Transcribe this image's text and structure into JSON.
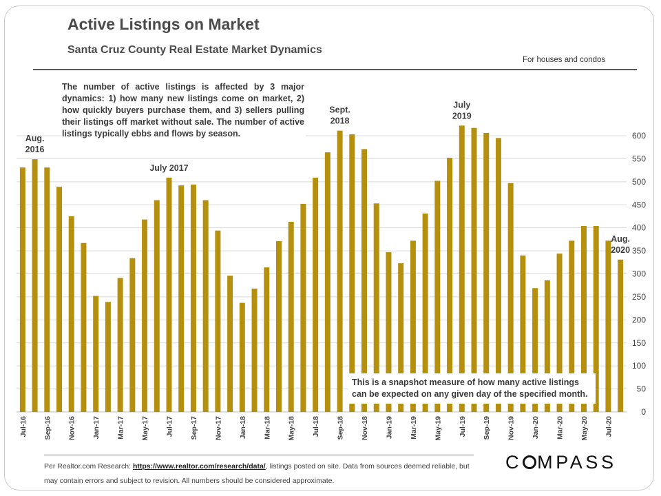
{
  "header": {
    "title": "Active Listings on Market",
    "subtitle": "Santa Cruz County Real Estate Market Dynamics",
    "scope_note": "For houses and condos"
  },
  "annotations": {
    "dynamics_note": "The number of active listings is affected by 3 major dynamics: 1) how many new listings come on market, 2) how quickly buyers purchase them, and 3) sellers pulling their listings off market without sale. The number of active listings typically ebbs and flows by season.",
    "snapshot_note": "This is a snapshot measure of how many active listings can be expected on any given day of the specified month."
  },
  "footer": {
    "prefix": "Per Realtor.com Research: ",
    "link_text": "https://www.realtor.com/research/data/",
    "suffix": ", listings posted on site. Data from sources deemed reliable, but may contain errors and subject to revision. All numbers should be considered approximate."
  },
  "brand": {
    "logo_text": "COMPASS",
    "bar_color": "#b5900f",
    "grid_color": "#d9d9d9"
  },
  "chart_data": {
    "type": "bar",
    "title": "Active Listings on Market",
    "xlabel": "",
    "ylabel": "",
    "ylim": [
      0,
      650
    ],
    "yticks": [
      0,
      50,
      100,
      150,
      200,
      250,
      300,
      350,
      400,
      450,
      500,
      550,
      600
    ],
    "y_axis_side": "right",
    "grid": true,
    "categories": [
      "Jul-16",
      "Aug-16",
      "Sep-16",
      "Oct-16",
      "Nov-16",
      "Dec-16",
      "Jan-17",
      "Feb-17",
      "Mar-17",
      "Apr-17",
      "May-17",
      "Jun-17",
      "Jul-17",
      "Aug-17",
      "Sep-17",
      "Oct-17",
      "Nov-17",
      "Dec-17",
      "Jan-18",
      "Feb-18",
      "Mar-18",
      "Apr-18",
      "May-18",
      "Jun-18",
      "Jul-18",
      "Aug-18",
      "Sep-18",
      "Oct-18",
      "Nov-18",
      "Dec-18",
      "Jan-19",
      "Feb-19",
      "Mar-19",
      "Apr-19",
      "May-19",
      "Jun-19",
      "Jul-19",
      "Aug-19",
      "Sep-19",
      "Oct-19",
      "Nov-19",
      "Dec-19",
      "Jan-20",
      "Feb-20",
      "Mar-20",
      "Apr-20",
      "May-20",
      "Jun-20",
      "Jul-20",
      "Aug-20"
    ],
    "tick_labels": [
      "Jul-16",
      "Sep-16",
      "Nov-16",
      "Jan-17",
      "Mar-17",
      "May-17",
      "Jul-17",
      "Sep-17",
      "Nov-17",
      "Jan-18",
      "Mar-18",
      "May-18",
      "Jul-18",
      "Sep-18",
      "Nov-18",
      "Jan-19",
      "Mar-19",
      "May-19",
      "Jul-19",
      "Sep-19",
      "Nov-19",
      "Jan-20",
      "Mar-20",
      "May-20",
      "Jul-20"
    ],
    "values": [
      531,
      549,
      531,
      489,
      425,
      367,
      252,
      239,
      291,
      334,
      418,
      460,
      509,
      492,
      494,
      460,
      394,
      296,
      237,
      268,
      314,
      371,
      413,
      452,
      509,
      564,
      611,
      603,
      571,
      453,
      347,
      323,
      372,
      431,
      502,
      552,
      622,
      617,
      606,
      595,
      497,
      340,
      269,
      286,
      344,
      372,
      404,
      404,
      372,
      331
    ],
    "callouts": [
      {
        "lines": [
          "Aug.",
          "2016"
        ],
        "category": "Aug-16"
      },
      {
        "lines": [
          "July 2017"
        ],
        "category": "Jul-17"
      },
      {
        "lines": [
          "Sept.",
          "2018"
        ],
        "category": "Sep-18"
      },
      {
        "lines": [
          "July",
          "2019"
        ],
        "category": "Jul-19"
      },
      {
        "lines": [
          "Aug.",
          "2020"
        ],
        "category": "Aug-20"
      }
    ]
  }
}
